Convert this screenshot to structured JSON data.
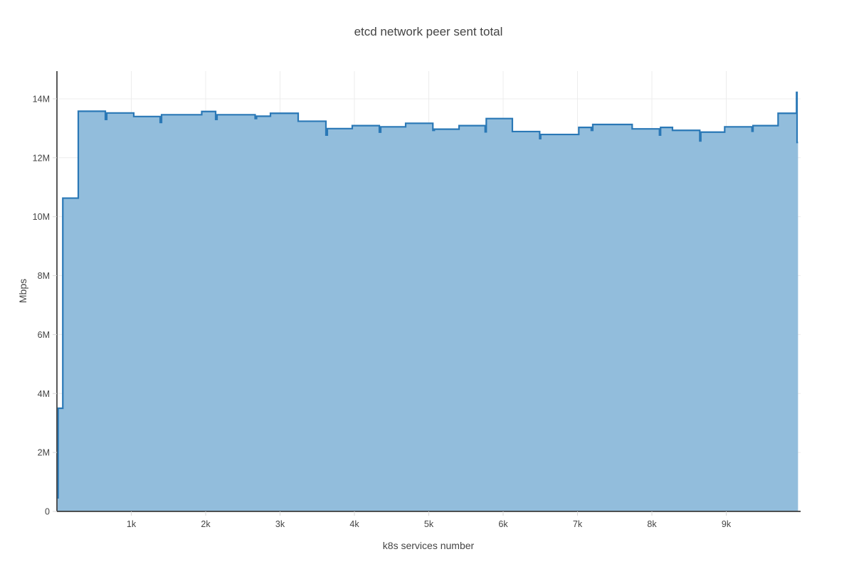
{
  "page": {
    "background": "#ffffff"
  },
  "chart_data": {
    "type": "area",
    "line_shape": "hv",
    "title": "etcd network peer sent total",
    "xlabel": "k8s services number",
    "ylabel": "Mbps",
    "legend_position": "none",
    "grid": true,
    "xlim": [
      0,
      10000
    ],
    "ylim": [
      0,
      14.94
    ],
    "y_unit": "Mbps (values in millions, tick suffix M)",
    "x_ticks": {
      "values": [
        1000,
        2000,
        3000,
        4000,
        5000,
        6000,
        7000,
        8000,
        9000
      ],
      "labels": [
        "1k",
        "2k",
        "3k",
        "4k",
        "5k",
        "6k",
        "7k",
        "8k",
        "9k"
      ]
    },
    "y_ticks": {
      "values": [
        0,
        2,
        4,
        6,
        8,
        10,
        12,
        14
      ],
      "labels": [
        "0",
        "2M",
        "4M",
        "6M",
        "8M",
        "10M",
        "12M",
        "14M"
      ]
    },
    "series": [
      {
        "name": "etcd network peer sent total",
        "x": [
          0,
          16,
          79,
          287,
          651,
          670,
          1033,
          1388,
          1407,
          1947,
          2134,
          2153,
          2665,
          2684,
          2871,
          3244,
          3617,
          3636,
          3971,
          4335,
          4354,
          4689,
          5055,
          5075,
          5407,
          5758,
          5773,
          6124,
          6491,
          6505,
          7017,
          7185,
          7205,
          7735,
          8102,
          8117,
          8277,
          8644,
          8658,
          8979,
          9346,
          9360,
          9697,
          9945,
          9952,
          9965
        ],
        "y": [
          0.46,
          3.5,
          10.63,
          13.58,
          13.3,
          13.52,
          13.4,
          13.2,
          13.46,
          13.57,
          13.3,
          13.46,
          13.33,
          13.41,
          13.51,
          13.24,
          12.77,
          12.99,
          13.09,
          12.87,
          13.05,
          13.17,
          12.93,
          12.97,
          13.09,
          12.88,
          13.33,
          12.89,
          12.65,
          12.79,
          13.03,
          12.93,
          13.13,
          12.98,
          12.77,
          13.03,
          12.93,
          12.57,
          12.87,
          13.05,
          12.9,
          13.09,
          13.51,
          14.22,
          12.52,
          12.52
        ]
      }
    ],
    "colors": {
      "line": "#2a78b6",
      "fill": "#92bddc",
      "grid": "#ececec",
      "tick_mark": "#d8d8d8",
      "axis_line": "#3b3b3b",
      "text": "#444444"
    }
  }
}
